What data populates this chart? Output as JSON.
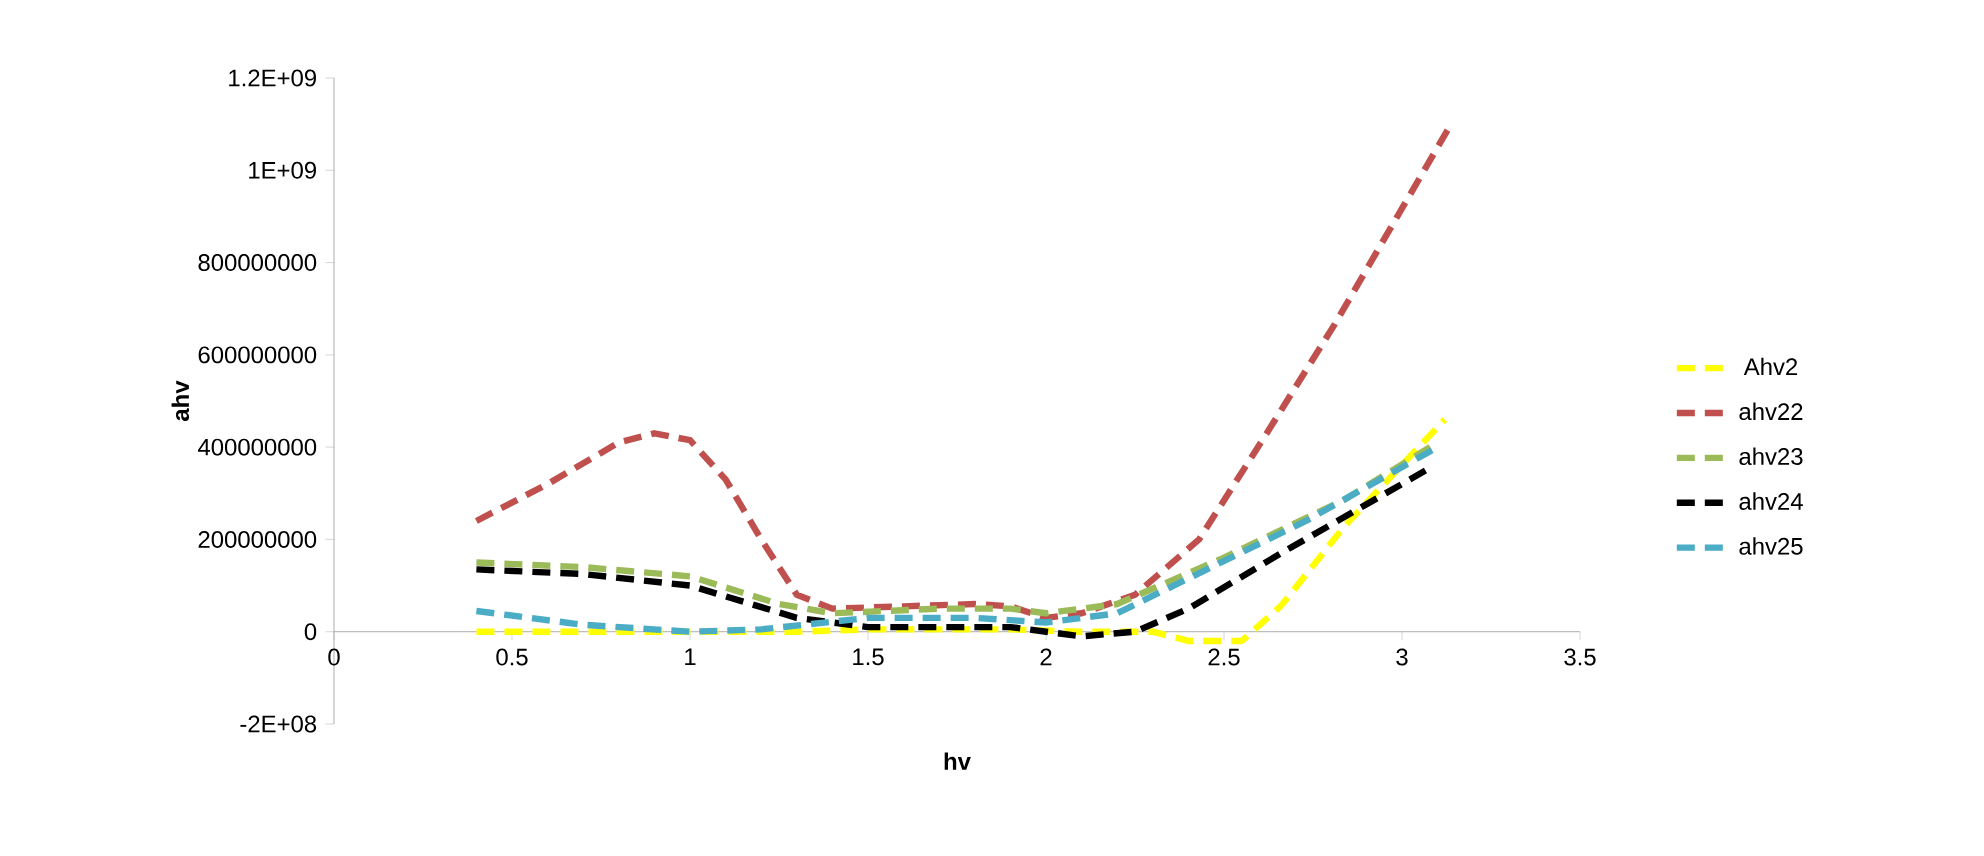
{
  "chart_data": {
    "type": "line",
    "xlabel": "hv",
    "ylabel": "ahv",
    "xlim": [
      0,
      3.5
    ],
    "xticks": [
      0,
      0.5,
      1,
      1.5,
      2,
      2.5,
      3,
      3.5
    ],
    "ylim": [
      -200000000,
      1200000000
    ],
    "yticks": [
      {
        "value": -200000000,
        "label": "-2E+08"
      },
      0,
      200000000,
      400000000,
      600000000,
      800000000,
      {
        "value": 1000000000,
        "label": "1E+09"
      },
      {
        "value": 1200000000,
        "label": "1.2E+09"
      }
    ],
    "legend": "right",
    "grid": false,
    "marker": "none",
    "line_style": "dashed",
    "series": [
      {
        "name": "Ahv2",
        "color": "#ffff00",
        "x": [
          0.4,
          0.7,
          1.0,
          1.3,
          1.5,
          1.7,
          1.9,
          2.1,
          2.3,
          2.4,
          2.55,
          2.66,
          2.84,
          3.12
        ],
        "values": [
          0,
          0,
          0,
          0,
          5000000,
          5000000,
          5000000,
          0,
          0,
          -20000000,
          -20000000,
          56000000,
          230000000,
          460000000
        ]
      },
      {
        "name": "ahv22",
        "color": "#c0504d",
        "x": [
          0.4,
          0.6,
          0.8,
          0.9,
          1.0,
          1.1,
          1.2,
          1.3,
          1.4,
          1.6,
          1.8,
          1.9,
          2.0,
          2.1,
          2.25,
          2.43,
          2.62,
          2.81,
          3.13
        ],
        "values": [
          240000000,
          320000000,
          410000000,
          430000000,
          415000000,
          330000000,
          200000000,
          80000000,
          50000000,
          55000000,
          60000000,
          55000000,
          30000000,
          40000000,
          80000000,
          200000000,
          430000000,
          665000000,
          1090000000
        ]
      },
      {
        "name": "ahv23",
        "color": "#9bbb59",
        "x": [
          0.4,
          0.7,
          1.0,
          1.25,
          1.4,
          1.7,
          1.9,
          2.0,
          2.2,
          2.49,
          2.84,
          3.1
        ],
        "values": [
          150000000,
          140000000,
          120000000,
          60000000,
          40000000,
          50000000,
          50000000,
          40000000,
          60000000,
          157000000,
          287000000,
          410000000
        ]
      },
      {
        "name": "ahv24",
        "color": "#000000",
        "x": [
          0.4,
          0.7,
          1.0,
          1.3,
          1.5,
          1.9,
          2.1,
          2.25,
          2.4,
          2.66,
          3.09
        ],
        "values": [
          135000000,
          125000000,
          100000000,
          30000000,
          10000000,
          10000000,
          -10000000,
          0,
          50000000,
          170000000,
          360000000
        ]
      },
      {
        "name": "ahv25",
        "color": "#4bacc6",
        "x": [
          0.4,
          0.7,
          1.0,
          1.2,
          1.5,
          1.8,
          2.0,
          2.2,
          2.73,
          3.1
        ],
        "values": [
          45000000,
          15000000,
          0,
          5000000,
          30000000,
          30000000,
          20000000,
          40000000,
          240000000,
          400000000
        ]
      }
    ]
  }
}
